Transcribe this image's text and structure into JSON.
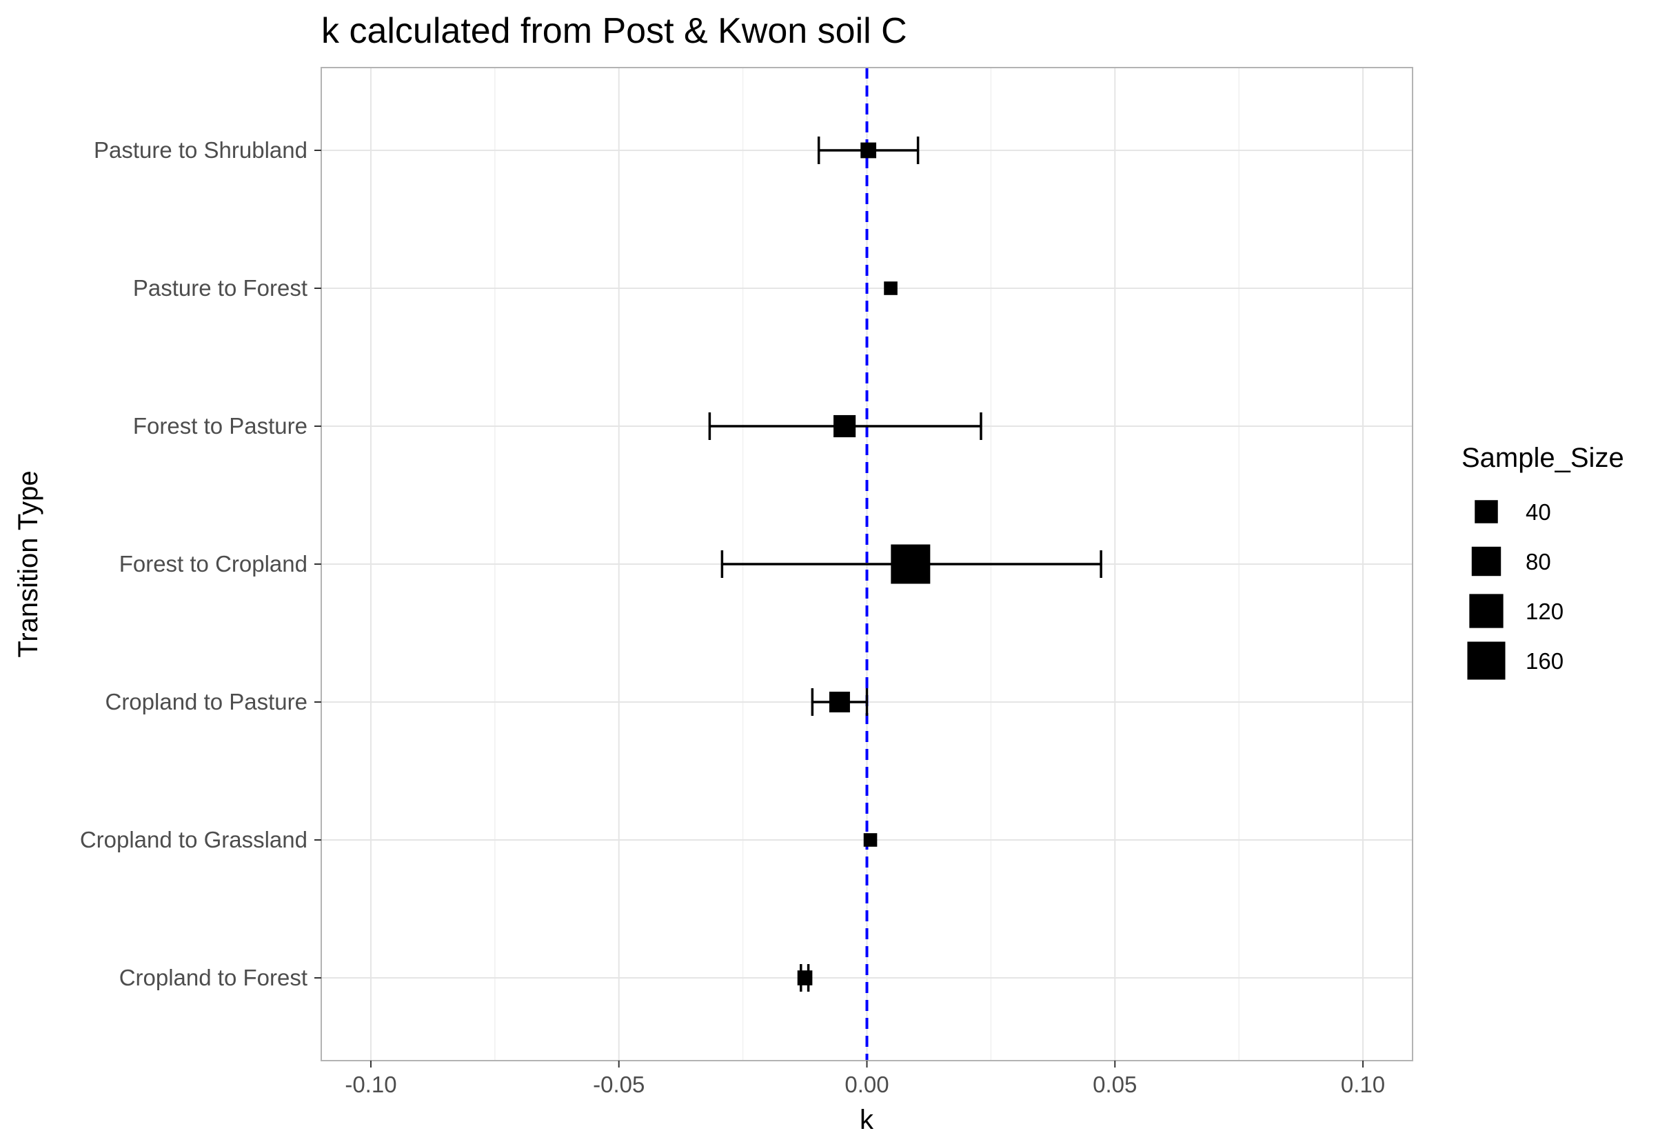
{
  "chart_data": {
    "type": "forest",
    "title": "k calculated from Post & Kwon soil C",
    "xlabel": "k",
    "ylabel": "Transition Type",
    "xlim": [
      -0.11,
      0.11
    ],
    "x_ticks": [
      -0.1,
      -0.05,
      0.0,
      0.05,
      0.1
    ],
    "x_tick_labels": [
      "-0.10",
      "-0.05",
      "0.00",
      "0.05",
      "0.10"
    ],
    "reference_line": {
      "x": 0,
      "style": "dashed",
      "color": "#0000ff"
    },
    "categories": [
      "Pasture to Shrubland",
      "Pasture to Forest",
      "Forest to Pasture",
      "Forest to Cropland",
      "Cropland to Pasture",
      "Cropland to Grassland",
      "Cropland to Forest"
    ],
    "points": [
      {
        "category": "Pasture to Shrubland",
        "k": 0.0003,
        "lower": -0.0097,
        "upper": 0.0103,
        "sample_size": 10
      },
      {
        "category": "Pasture to Forest",
        "k": 0.0048,
        "lower": null,
        "upper": null,
        "sample_size": 5
      },
      {
        "category": "Forest to Pasture",
        "k": -0.0045,
        "lower": -0.0317,
        "upper": 0.023,
        "sample_size": 35
      },
      {
        "category": "Forest to Cropland",
        "k": 0.0088,
        "lower": -0.0292,
        "upper": 0.0472,
        "sample_size": 175
      },
      {
        "category": "Cropland to Pasture",
        "k": -0.0055,
        "lower": -0.011,
        "upper": 0.0,
        "sample_size": 28
      },
      {
        "category": "Cropland to Grassland",
        "k": 0.0007,
        "lower": null,
        "upper": null,
        "sample_size": 5
      },
      {
        "category": "Cropland to Forest",
        "k": -0.0125,
        "lower": -0.0133,
        "upper": -0.0118,
        "sample_size": 8
      }
    ],
    "legend": {
      "title": "Sample_Size",
      "position": "right",
      "entries": [
        {
          "label": "40",
          "value": 40
        },
        {
          "label": "80",
          "value": 80
        },
        {
          "label": "120",
          "value": 120
        },
        {
          "label": "160",
          "value": 160
        }
      ]
    },
    "grid": true,
    "colors": {
      "point": "#000000",
      "errorbar": "#000000",
      "reference": "#0000ff",
      "grid": "#e5e5e5",
      "panel_border": "#b3b3b3"
    }
  }
}
